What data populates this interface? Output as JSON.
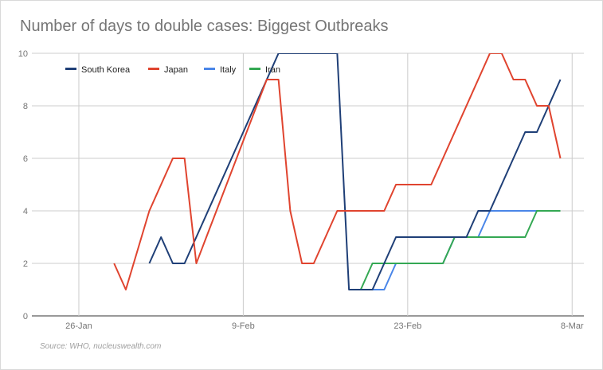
{
  "chart_data": {
    "type": "line",
    "title": "Number of days to double cases: Biggest Outbreaks",
    "source": "Source: WHO, nucleuswealth.com",
    "xlabel": "",
    "ylabel": "",
    "x_ticks": [
      "26-Jan",
      "9-Feb",
      "23-Feb",
      "8-Mar"
    ],
    "y_ticks": [
      "0",
      "2",
      "4",
      "6",
      "8",
      "10"
    ],
    "xlim": [
      "2020-01-22",
      "2020-03-09"
    ],
    "ylim": [
      0,
      10
    ],
    "grid": true,
    "legend_position": "top-left",
    "series": [
      {
        "name": "South Korea",
        "color": "#1f3f77",
        "points": [
          [
            "2020-02-01",
            2
          ],
          [
            "2020-02-02",
            3
          ],
          [
            "2020-02-03",
            2
          ],
          [
            "2020-02-04",
            2
          ],
          [
            "2020-02-12",
            10
          ],
          [
            "2020-02-17",
            10
          ],
          [
            "2020-02-18",
            1
          ],
          [
            "2020-02-19",
            1
          ],
          [
            "2020-02-20",
            1
          ],
          [
            "2020-02-21",
            2
          ],
          [
            "2020-02-22",
            3
          ],
          [
            "2020-02-23",
            3
          ],
          [
            "2020-02-24",
            3
          ],
          [
            "2020-02-25",
            3
          ],
          [
            "2020-02-26",
            3
          ],
          [
            "2020-02-27",
            3
          ],
          [
            "2020-02-28",
            3
          ],
          [
            "2020-02-29",
            4
          ],
          [
            "2020-03-01",
            4
          ],
          [
            "2020-03-02",
            5
          ],
          [
            "2020-03-03",
            6
          ],
          [
            "2020-03-04",
            7
          ],
          [
            "2020-03-05",
            7
          ],
          [
            "2020-03-06",
            8
          ],
          [
            "2020-03-07",
            9
          ]
        ]
      },
      {
        "name": "Japan",
        "color": "#e0442f",
        "points": [
          [
            "2020-01-29",
            2
          ],
          [
            "2020-01-30",
            1
          ],
          [
            "2020-02-01",
            4
          ],
          [
            "2020-02-03",
            6
          ],
          [
            "2020-02-04",
            6
          ],
          [
            "2020-02-05",
            2
          ],
          [
            "2020-02-11",
            9
          ],
          [
            "2020-02-12",
            9
          ],
          [
            "2020-02-13",
            4
          ],
          [
            "2020-02-14",
            2
          ],
          [
            "2020-02-15",
            2
          ],
          [
            "2020-02-17",
            4
          ],
          [
            "2020-02-18",
            4
          ],
          [
            "2020-02-19",
            4
          ],
          [
            "2020-02-20",
            4
          ],
          [
            "2020-02-21",
            4
          ],
          [
            "2020-02-22",
            5
          ],
          [
            "2020-02-23",
            5
          ],
          [
            "2020-02-24",
            5
          ],
          [
            "2020-02-25",
            5
          ],
          [
            "2020-03-01",
            10
          ],
          [
            "2020-03-02",
            10
          ],
          [
            "2020-03-03",
            9
          ],
          [
            "2020-03-04",
            9
          ],
          [
            "2020-03-05",
            8
          ],
          [
            "2020-03-06",
            8
          ],
          [
            "2020-03-07",
            6
          ]
        ]
      },
      {
        "name": "Italy",
        "color": "#4a86e8",
        "points": [
          [
            "2020-02-18",
            1
          ],
          [
            "2020-02-19",
            1
          ],
          [
            "2020-02-20",
            1
          ],
          [
            "2020-02-21",
            1
          ],
          [
            "2020-02-22",
            2
          ],
          [
            "2020-02-23",
            2
          ],
          [
            "2020-02-24",
            2
          ],
          [
            "2020-02-25",
            2
          ],
          [
            "2020-02-26",
            2
          ],
          [
            "2020-02-27",
            3
          ],
          [
            "2020-02-28",
            3
          ],
          [
            "2020-02-29",
            3
          ],
          [
            "2020-03-01",
            4
          ],
          [
            "2020-03-02",
            4
          ],
          [
            "2020-03-03",
            4
          ],
          [
            "2020-03-04",
            4
          ],
          [
            "2020-03-05",
            4
          ],
          [
            "2020-03-06",
            4
          ],
          [
            "2020-03-07",
            4
          ]
        ]
      },
      {
        "name": "Iran",
        "color": "#34a853",
        "points": [
          [
            "2020-02-18",
            1
          ],
          [
            "2020-02-19",
            1
          ],
          [
            "2020-02-20",
            2
          ],
          [
            "2020-02-21",
            2
          ],
          [
            "2020-02-22",
            2
          ],
          [
            "2020-02-23",
            2
          ],
          [
            "2020-02-24",
            2
          ],
          [
            "2020-02-25",
            2
          ],
          [
            "2020-02-26",
            2
          ],
          [
            "2020-02-27",
            3
          ],
          [
            "2020-02-28",
            3
          ],
          [
            "2020-02-29",
            3
          ],
          [
            "2020-03-01",
            3
          ],
          [
            "2020-03-02",
            3
          ],
          [
            "2020-03-03",
            3
          ],
          [
            "2020-03-04",
            3
          ],
          [
            "2020-03-05",
            4
          ],
          [
            "2020-03-06",
            4
          ],
          [
            "2020-03-07",
            4
          ]
        ]
      }
    ]
  }
}
